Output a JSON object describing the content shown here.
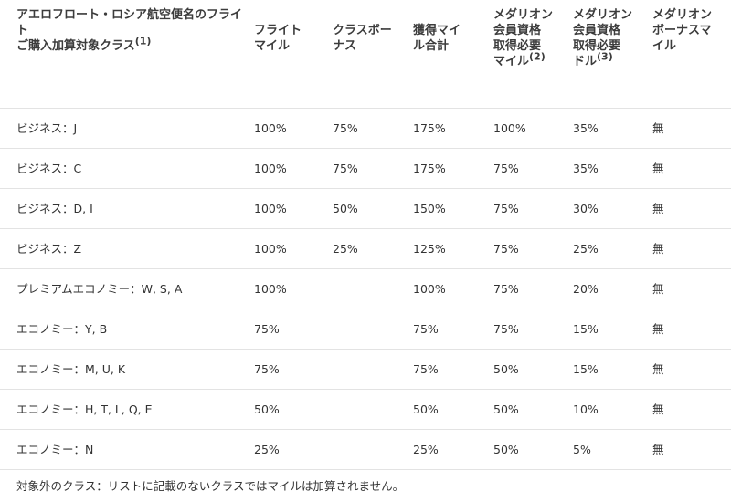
{
  "table": {
    "headers": [
      {
        "lines": [
          "アエロフロート・ロシア航空便名のフライ",
          "ト",
          "ご購入加算対象クラス"
        ],
        "note": "(1)"
      },
      {
        "lines": [
          "フライト",
          "マイル"
        ],
        "note": ""
      },
      {
        "lines": [
          "クラスボー",
          "ナス"
        ],
        "note": ""
      },
      {
        "lines": [
          "獲得マイ",
          "ル合計"
        ],
        "note": ""
      },
      {
        "lines": [
          "メダリオン",
          "会員資格",
          "取得必要",
          "マイル"
        ],
        "note": "(2)"
      },
      {
        "lines": [
          "メダリオン",
          "会員資格",
          "取得必要",
          "ドル"
        ],
        "note": "(3)"
      },
      {
        "lines": [
          "メダリオン",
          "ボーナスマ",
          "イル"
        ],
        "note": ""
      }
    ],
    "rows": [
      [
        "ビジネス：J",
        "100%",
        "75%",
        "175%",
        "100%",
        "35%",
        "無"
      ],
      [
        "ビジネス：C",
        "100%",
        "75%",
        "175%",
        "75%",
        "35%",
        "無"
      ],
      [
        "ビジネス：D, I",
        "100%",
        "50%",
        "150%",
        "75%",
        "30%",
        "無"
      ],
      [
        "ビジネス：Z",
        "100%",
        "25%",
        "125%",
        "75%",
        "25%",
        "無"
      ],
      [
        "プレミアムエコノミー：W, S, A",
        "100%",
        "",
        "100%",
        "75%",
        "20%",
        "無"
      ],
      [
        "エコノミー：Y, B",
        "75%",
        "",
        "75%",
        "75%",
        "15%",
        "無"
      ],
      [
        "エコノミー：M, U, K",
        "75%",
        "",
        "75%",
        "50%",
        "15%",
        "無"
      ],
      [
        "エコノミー：H, T, L, Q, E",
        "50%",
        "",
        "50%",
        "50%",
        "10%",
        "無"
      ],
      [
        "エコノミー：N",
        "25%",
        "",
        "25%",
        "50%",
        "5%",
        "無"
      ]
    ]
  },
  "footnote": "対象外のクラス：リストに記載のないクラスではマイルは加算されません。"
}
